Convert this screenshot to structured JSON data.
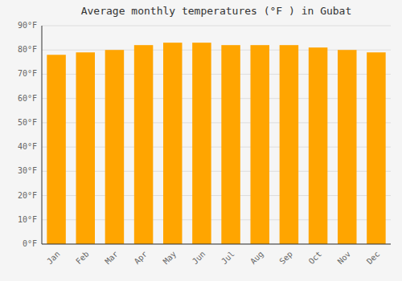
{
  "chart_data": {
    "type": "bar",
    "title": "Average monthly temperatures (°F ) in Gubat",
    "categories": [
      "Jan",
      "Feb",
      "Mar",
      "Apr",
      "May",
      "Jun",
      "Jul",
      "Aug",
      "Sep",
      "Oct",
      "Nov",
      "Dec"
    ],
    "values": [
      78,
      79,
      80,
      82,
      83,
      83,
      82,
      82,
      82,
      81,
      80,
      79
    ],
    "color": "#FFA500",
    "ylim": [
      0,
      90
    ],
    "yticks": [
      {
        "value": 0,
        "label": "0°F"
      },
      {
        "value": 10,
        "label": "10°F"
      },
      {
        "value": 20,
        "label": "20°F"
      },
      {
        "value": 30,
        "label": "30°F"
      },
      {
        "value": 40,
        "label": "40°F"
      },
      {
        "value": 50,
        "label": "50°F"
      },
      {
        "value": 60,
        "label": "60°F"
      },
      {
        "value": 70,
        "label": "70°F"
      },
      {
        "value": 80,
        "label": "80°F"
      },
      {
        "value": 90,
        "label": "90°F"
      }
    ],
    "grid": true
  }
}
